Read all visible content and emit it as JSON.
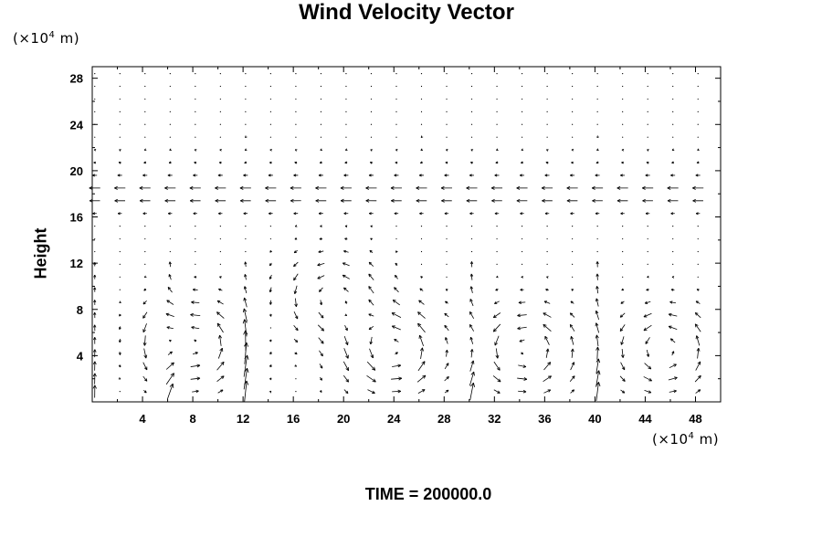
{
  "chart_data": {
    "type": "vector-field",
    "title": "Wind Velocity Vector",
    "ylabel": "Height",
    "xlabel": "",
    "y_unit": {
      "prefix": "(×10",
      "exp": "4",
      "suffix": " m)"
    },
    "x_unit": {
      "prefix": "(×10",
      "exp": "4",
      "suffix": " m)"
    },
    "xlim": [
      0,
      50
    ],
    "ylim": [
      0,
      29
    ],
    "x_ticks": [
      4,
      8,
      12,
      16,
      20,
      24,
      28,
      32,
      36,
      40,
      44,
      48
    ],
    "y_ticks": [
      4,
      8,
      12,
      16,
      20,
      24,
      28
    ],
    "grid": false,
    "annotation": "TIME = 200000.0",
    "vector_grid": {
      "x_start": 0.2,
      "x_step": 2,
      "y_start": 0.9,
      "y_step": 1.1,
      "count_x": 25,
      "count_y": 26
    },
    "circulation_cells": [
      {
        "x": 8,
        "y": 5,
        "strength": 1.2
      },
      {
        "x": 19,
        "y": 9,
        "strength": 0.9
      },
      {
        "x": 24,
        "y": 4.5,
        "strength": 1.3
      },
      {
        "x": 34.5,
        "y": 4.5,
        "strength": 1.2
      },
      {
        "x": 45.5,
        "y": 4.5,
        "strength": 1.1
      }
    ]
  }
}
